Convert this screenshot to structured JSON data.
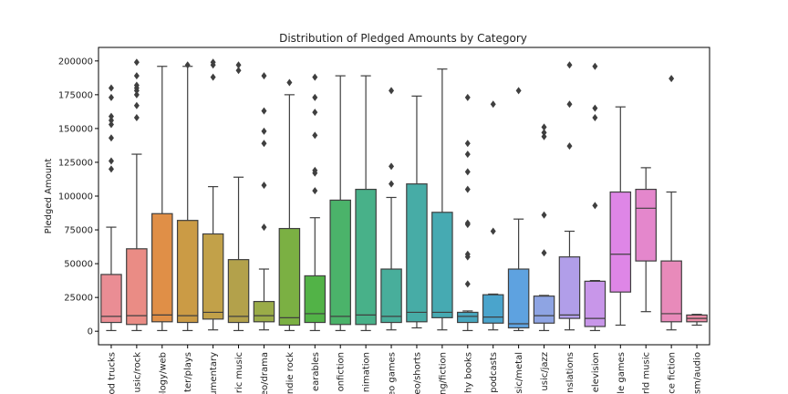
{
  "chart_data": {
    "type": "box",
    "title": "Distribution of Pledged Amounts by Category",
    "xlabel": "",
    "ylabel": "Pledged Amount",
    "ylim": [
      -10000,
      210000
    ],
    "yticks": [
      0,
      25000,
      50000,
      75000,
      100000,
      125000,
      150000,
      175000,
      200000
    ],
    "ytick_labels": [
      "0",
      "25000",
      "50000",
      "75000",
      "100000",
      "125000",
      "150000",
      "175000",
      "200000"
    ],
    "grid": false,
    "legend": "none",
    "categories": [
      {
        "label": "Food trucks",
        "display_label": "od trucks",
        "color": "#ea8d94",
        "min": 500,
        "q1": 6500,
        "median": 11000,
        "q3": 42000,
        "max": 77000,
        "outliers": [
          120000,
          126000,
          143000,
          153000,
          156000,
          159000,
          173000,
          180000
        ]
      },
      {
        "label": "Music/rock",
        "display_label": "usic/rock",
        "color": "#ea8c85",
        "min": 500,
        "q1": 5000,
        "median": 11500,
        "q3": 61000,
        "max": 131000,
        "outliers": [
          158000,
          167000,
          175000,
          178000,
          180000,
          182000,
          189000,
          199000
        ]
      },
      {
        "label": "Technology/web",
        "display_label": "ology/web",
        "color": "#e08f47",
        "min": 500,
        "q1": 7000,
        "median": 12000,
        "q3": 87000,
        "max": 196000,
        "outliers": []
      },
      {
        "label": "Theater/plays",
        "display_label": "ter/plays",
        "color": "#cb9b45",
        "min": 500,
        "q1": 6500,
        "median": 11500,
        "q3": 82000,
        "max": 196000,
        "outliers": [
          197000
        ]
      },
      {
        "label": "Documentary",
        "display_label": "umentary",
        "color": "#c2a149",
        "min": 1000,
        "q1": 9000,
        "median": 14000,
        "q3": 72000,
        "max": 107000,
        "outliers": [
          188000,
          197000,
          199000
        ]
      },
      {
        "label": "Electronic music",
        "display_label": "ric music",
        "color": "#b3a14b",
        "min": 500,
        "q1": 6500,
        "median": 11000,
        "q3": 53000,
        "max": 114000,
        "outliers": [
          193000,
          197000
        ]
      },
      {
        "label": "Video/drama",
        "display_label": "eo/drama",
        "color": "#9aac48",
        "min": 1000,
        "q1": 7000,
        "median": 11500,
        "q3": 22000,
        "max": 46000,
        "outliers": [
          77000,
          108000,
          139000,
          148000,
          163000,
          189000
        ]
      },
      {
        "label": "Indie rock",
        "display_label": "ndie rock",
        "color": "#7bb043",
        "min": 500,
        "q1": 4500,
        "median": 10000,
        "q3": 76000,
        "max": 175000,
        "outliers": [
          184000
        ]
      },
      {
        "label": "Wearables",
        "display_label": "earables",
        "color": "#52b347",
        "min": 500,
        "q1": 6500,
        "median": 13000,
        "q3": 41000,
        "max": 84000,
        "outliers": [
          104000,
          117000,
          119000,
          145000,
          162000,
          173000,
          188000
        ]
      },
      {
        "label": "Nonfiction",
        "display_label": "onfiction",
        "color": "#4bb36a",
        "min": 500,
        "q1": 5000,
        "median": 11000,
        "q3": 97000,
        "max": 189000,
        "outliers": []
      },
      {
        "label": "Animation",
        "display_label": "nimation",
        "color": "#48b189",
        "min": 500,
        "q1": 5000,
        "median": 12000,
        "q3": 105000,
        "max": 189000,
        "outliers": []
      },
      {
        "label": "Video games",
        "display_label": "eo games",
        "color": "#48ae9b",
        "min": 1000,
        "q1": 6500,
        "median": 11000,
        "q3": 46000,
        "max": 99000,
        "outliers": [
          109000,
          122000,
          178000
        ]
      },
      {
        "label": "Film/shorts",
        "display_label": "eo/shorts",
        "color": "#47aca6",
        "min": 2500,
        "q1": 7000,
        "median": 14000,
        "q3": 109000,
        "max": 174000,
        "outliers": []
      },
      {
        "label": "Publishing/fiction",
        "display_label": "ng/fiction",
        "color": "#46aab2",
        "min": 1000,
        "q1": 10000,
        "median": 14000,
        "q3": 88000,
        "max": 194000,
        "outliers": []
      },
      {
        "label": "Photobooks",
        "display_label": "hy books",
        "color": "#48a7bf",
        "min": 500,
        "q1": 6500,
        "median": 11000,
        "q3": 14000,
        "max": 15000,
        "outliers": [
          35000,
          55000,
          57000,
          79000,
          80000,
          105000,
          118000,
          131000,
          139000,
          173000
        ]
      },
      {
        "label": "Podcasts",
        "display_label": "podcasts",
        "color": "#4aa4cc",
        "min": 1000,
        "q1": 6000,
        "median": 10500,
        "q3": 27000,
        "max": 27500,
        "outliers": [
          74000,
          168000
        ]
      },
      {
        "label": "Music/metal",
        "display_label": "sic/metal",
        "color": "#5ea2e0",
        "min": 500,
        "q1": 2500,
        "median": 5500,
        "q3": 46000,
        "max": 83000,
        "outliers": [
          178000
        ]
      },
      {
        "label": "Music/jazz",
        "display_label": "usic/jazz",
        "color": "#8ea4e3",
        "min": 500,
        "q1": 6000,
        "median": 11500,
        "q3": 26000,
        "max": 26500,
        "outliers": [
          58000,
          86000,
          144000,
          147000,
          151000
        ]
      },
      {
        "label": "Translations",
        "display_label": "nslations",
        "color": "#b19ee9",
        "min": 1000,
        "q1": 9500,
        "median": 12000,
        "q3": 55000,
        "max": 74000,
        "outliers": [
          137000,
          168000,
          197000
        ]
      },
      {
        "label": "Television",
        "display_label": "elevision",
        "color": "#c896e9",
        "min": 500,
        "q1": 3500,
        "median": 9500,
        "q3": 37000,
        "max": 37500,
        "outliers": [
          93000,
          158000,
          165000,
          196000
        ]
      },
      {
        "label": "Mobile games",
        "display_label": "le games",
        "color": "#de86e6",
        "min": 4500,
        "q1": 29000,
        "median": 57000,
        "q3": 103000,
        "max": 166000,
        "outliers": []
      },
      {
        "label": "World music",
        "display_label": "rld music",
        "color": "#e487cc",
        "min": 14500,
        "q1": 52000,
        "median": 91000,
        "q3": 105000,
        "max": 121000,
        "outliers": []
      },
      {
        "label": "Science fiction",
        "display_label": "ce fiction",
        "color": "#e88aba",
        "min": 1000,
        "q1": 7000,
        "median": 13000,
        "q3": 52000,
        "max": 103000,
        "outliers": [
          187000
        ]
      },
      {
        "label": "Journalism/audio",
        "display_label": "sm/audio",
        "color": "#ea8ba6",
        "min": 4500,
        "q1": 7000,
        "median": 9500,
        "q3": 12000,
        "max": 12500,
        "outliers": []
      }
    ]
  }
}
